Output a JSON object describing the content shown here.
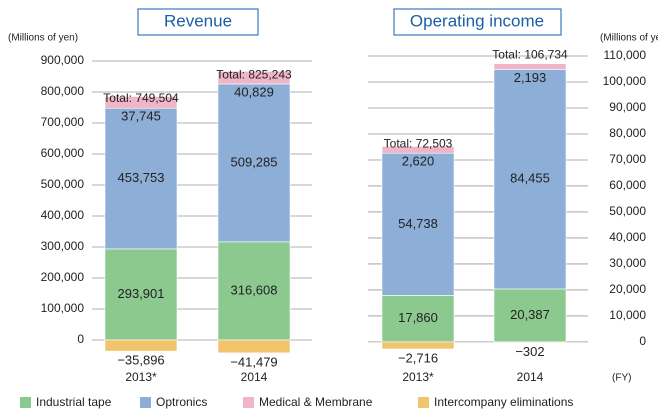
{
  "chart_data": [
    {
      "type": "stacked_bar",
      "title": "Revenue",
      "ylabel": "(Millions of yen)",
      "categories": [
        "2013*",
        "2014"
      ],
      "series": [
        {
          "name": "Industrial tape",
          "color": "#8cc98f",
          "values": [
            293901,
            316608
          ],
          "value_labels": [
            "293,901",
            "316,608"
          ]
        },
        {
          "name": "Optronics",
          "color": "#8daed6",
          "values": [
            453753,
            509285
          ],
          "value_labels": [
            "453,753",
            "509,285"
          ]
        },
        {
          "name": "Medical & Membrane",
          "color": "#f0b5c9",
          "values": [
            37745,
            40829
          ],
          "value_labels": [
            "37,745",
            "40,829"
          ]
        },
        {
          "name": "Intercompany eliminations",
          "color": "#f2c46b",
          "values": [
            -35896,
            -41479
          ],
          "value_labels": [
            "−35,896",
            "−41,479"
          ]
        }
      ],
      "totals": [
        749504,
        825243
      ],
      "total_labels": [
        "Total: 749,504",
        "Total: 825,243"
      ],
      "ylim": [
        -50000,
        900000
      ],
      "yticks": [
        0,
        {
          "value": 100000,
          "label": "100,000"
        },
        {
          "value": 200000,
          "label": "200,000"
        },
        {
          "value": 300000,
          "label": "300,000"
        },
        {
          "value": 400000,
          "label": "400,000"
        },
        {
          "value": 500000,
          "label": "500,000"
        },
        {
          "value": 600000,
          "label": "600,000"
        },
        {
          "value": 700000,
          "label": "700,000"
        },
        {
          "value": 800000,
          "label": "800,000"
        },
        {
          "value": 900000,
          "label": "900,000"
        }
      ],
      "grid": true
    },
    {
      "type": "stacked_bar",
      "title": "Operating income",
      "ylabel": "(Millions of yen)",
      "xlabel": "(FY)",
      "categories": [
        "2013*",
        "2014"
      ],
      "series": [
        {
          "color": "#8cc98f",
          "values": [
            17860,
            20387
          ],
          "value_labels": [
            "17,860",
            "20,387"
          ]
        },
        {
          "color": "#8daed6",
          "values": [
            54738,
            84455
          ],
          "value_labels": [
            "54,738",
            "84,455"
          ]
        },
        {
          "color": "#f0b5c9",
          "values": [
            2620,
            2193
          ],
          "value_labels": [
            "2,620",
            "2,193"
          ]
        },
        {
          "color": "#f2c46b",
          "values": [
            -2716,
            -302
          ],
          "value_labels": [
            "−2,716",
            "−302"
          ]
        }
      ],
      "totals": [
        72503,
        106734
      ],
      "total_labels": [
        "Total: 72,503",
        "Total: 106,734"
      ],
      "ylim": [
        -5000,
        110000
      ],
      "yticks": [
        0,
        {
          "value": 10000,
          "label": "10,000"
        },
        {
          "value": 20000,
          "label": "20,000"
        },
        {
          "value": 30000,
          "label": "30,000"
        },
        {
          "value": 40000,
          "label": "40,000"
        },
        {
          "value": 50000,
          "label": "50,000"
        },
        {
          "value": 60000,
          "label": "60,000"
        },
        {
          "value": 70000,
          "label": "70,000"
        },
        {
          "value": 80000,
          "label": "80,000"
        },
        {
          "value": 90000,
          "label": "90,000"
        },
        {
          "value": 100000,
          "label": "100,000"
        },
        {
          "value": 110000,
          "label": "110,000"
        }
      ],
      "grid": true
    }
  ]
}
